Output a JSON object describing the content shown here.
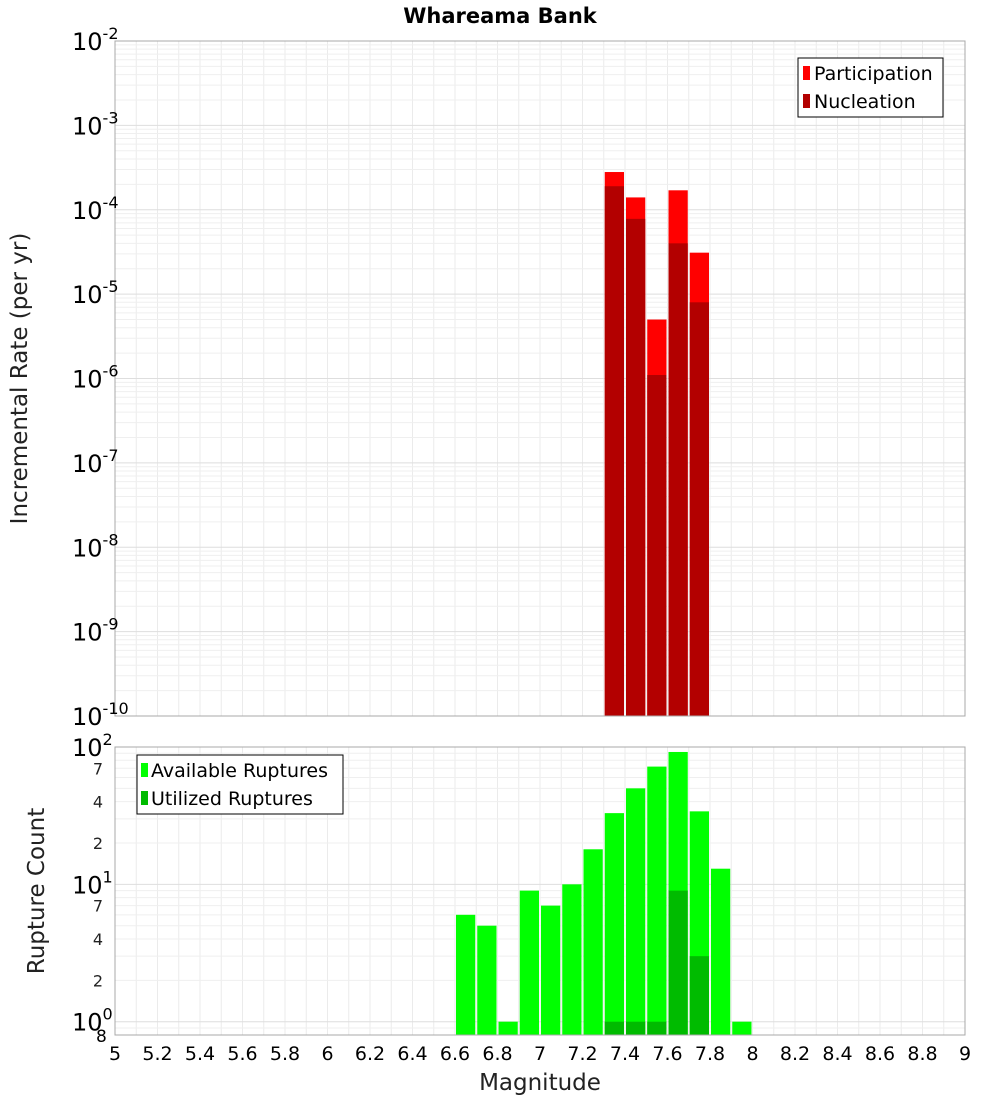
{
  "chart_data": [
    {
      "type": "bar",
      "title": "Whareama Bank",
      "ylabel": "Incremental Rate (per yr)",
      "xlabel": "",
      "yscale": "log",
      "ylim": [
        1e-10,
        0.01
      ],
      "xlim": [
        5,
        9
      ],
      "grid": true,
      "legend_position": "top-right",
      "y_ticks": [
        {
          "value": 0.01,
          "base": "10",
          "exp": "-2"
        },
        {
          "value": 0.001,
          "base": "10",
          "exp": "-3"
        },
        {
          "value": 0.0001,
          "base": "10",
          "exp": "-4"
        },
        {
          "value": 1e-05,
          "base": "10",
          "exp": "-5"
        },
        {
          "value": 1e-06,
          "base": "10",
          "exp": "-6"
        },
        {
          "value": 1e-07,
          "base": "10",
          "exp": "-7"
        },
        {
          "value": 1e-08,
          "base": "10",
          "exp": "-8"
        },
        {
          "value": 1e-09,
          "base": "10",
          "exp": "-9"
        },
        {
          "value": 1e-10,
          "base": "10",
          "exp": "-10"
        }
      ],
      "x": [
        7.35,
        7.45,
        7.55,
        7.65,
        7.75
      ],
      "series": [
        {
          "name": "Participation",
          "color": "#ff0000",
          "values": [
            0.00028,
            0.00014,
            5e-06,
            0.00017,
            3.1e-05
          ]
        },
        {
          "name": "Nucleation",
          "color": "#b30000",
          "values": [
            0.00019,
            7.8e-05,
            1.1e-06,
            4e-05,
            8e-06
          ]
        }
      ]
    },
    {
      "type": "bar",
      "title": "",
      "ylabel": "Rupture Count",
      "xlabel": "Magnitude",
      "yscale": "log",
      "ylim": [
        0.8,
        100
      ],
      "xlim": [
        5,
        9
      ],
      "grid": true,
      "legend_position": "top-left",
      "x_ticks": [
        "5",
        "5.2",
        "5.4",
        "5.6",
        "5.8",
        "6",
        "6.2",
        "6.4",
        "6.6",
        "6.8",
        "7",
        "7.2",
        "7.4",
        "7.6",
        "7.8",
        "8",
        "8.2",
        "8.4",
        "8.6",
        "8.8",
        "9"
      ],
      "y_ticks": [
        {
          "value": 100,
          "base": "10",
          "exp": "2"
        },
        {
          "value": 10,
          "base": "10",
          "exp": "1"
        },
        {
          "value": 1,
          "base": "10",
          "exp": "0"
        }
      ],
      "y_minor_labels": [
        {
          "value": 70,
          "label": "7"
        },
        {
          "value": 40,
          "label": "4"
        },
        {
          "value": 20,
          "label": "2"
        },
        {
          "value": 7,
          "label": "7"
        },
        {
          "value": 4,
          "label": "4"
        },
        {
          "value": 2,
          "label": "2"
        }
      ],
      "y_bottom_label": "8",
      "x": [
        6.65,
        6.75,
        6.85,
        6.95,
        7.05,
        7.15,
        7.25,
        7.35,
        7.45,
        7.55,
        7.65,
        7.75,
        7.85,
        7.95
      ],
      "series": [
        {
          "name": "Available Ruptures",
          "color": "#00ff00",
          "values": [
            6,
            5,
            1,
            9,
            7,
            10,
            18,
            33,
            50,
            72,
            92,
            34,
            13,
            1
          ]
        },
        {
          "name": "Utilized Ruptures",
          "color": "#00bb00",
          "values": [
            0,
            0,
            0,
            0,
            0,
            0,
            0,
            1,
            1,
            1,
            9,
            3,
            0,
            0
          ]
        }
      ]
    }
  ]
}
